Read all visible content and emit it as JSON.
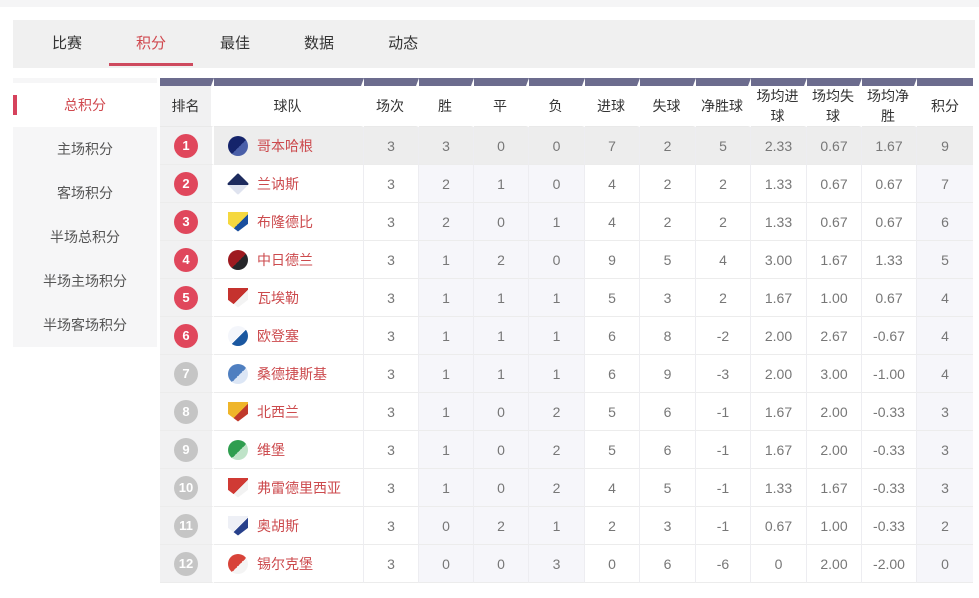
{
  "nav": {
    "tabs": [
      {
        "label": "比赛",
        "active": false
      },
      {
        "label": "积分",
        "active": true
      },
      {
        "label": "最佳",
        "active": false
      },
      {
        "label": "数据",
        "active": false
      },
      {
        "label": "动态",
        "active": false
      }
    ]
  },
  "sidebar": {
    "items": [
      {
        "label": "总积分",
        "active": true
      },
      {
        "label": "主场积分",
        "active": false
      },
      {
        "label": "客场积分",
        "active": false
      },
      {
        "label": "半场总积分",
        "active": false
      },
      {
        "label": "半场主场积分",
        "active": false
      },
      {
        "label": "半场客场积分",
        "active": false
      }
    ]
  },
  "colors": {
    "accent_red": "#e0475c",
    "text_red": "#cc4a4d",
    "header_purple": "#6c6c8e",
    "badge_gray": "#c5c5c5",
    "nav_bg": "#f0f0f0",
    "tint_col": "#f6f6fa"
  },
  "table": {
    "columns": [
      "排名",
      "球队",
      "场次",
      "胜",
      "平",
      "负",
      "进球",
      "失球",
      "净胜球",
      "场均进球",
      "场均失球",
      "场均净胜",
      "积分"
    ],
    "tinted_stat_indexes": [
      1,
      2,
      3,
      10
    ],
    "rows": [
      {
        "rank": "1",
        "team": "哥本哈根",
        "badge": "red",
        "highlighted": true,
        "logo": {
          "shape": "circle",
          "c1": "#15246b",
          "c2": "#4a5fa8"
        },
        "stats": [
          "3",
          "3",
          "0",
          "0",
          "7",
          "2",
          "5",
          "2.33",
          "0.67",
          "1.67",
          "9"
        ]
      },
      {
        "rank": "2",
        "team": "兰讷斯",
        "badge": "red",
        "highlighted": false,
        "logo": {
          "shape": "diamond",
          "c1": "#1d2b5e",
          "c2": "#dfe3ef"
        },
        "stats": [
          "3",
          "2",
          "1",
          "0",
          "4",
          "2",
          "2",
          "1.33",
          "0.67",
          "0.67",
          "7"
        ]
      },
      {
        "rank": "3",
        "team": "布隆德比",
        "badge": "red",
        "highlighted": false,
        "logo": {
          "shape": "shield",
          "c1": "#f5d83f",
          "c2": "#1a4f9e"
        },
        "stats": [
          "3",
          "2",
          "0",
          "1",
          "4",
          "2",
          "2",
          "1.33",
          "0.67",
          "0.67",
          "6"
        ]
      },
      {
        "rank": "4",
        "team": "中日德兰",
        "badge": "red",
        "highlighted": false,
        "logo": {
          "shape": "circle",
          "c1": "#9e1a20",
          "c2": "#26262a"
        },
        "stats": [
          "3",
          "1",
          "2",
          "0",
          "9",
          "5",
          "4",
          "3.00",
          "1.67",
          "1.33",
          "5"
        ]
      },
      {
        "rank": "5",
        "team": "瓦埃勒",
        "badge": "red",
        "highlighted": false,
        "logo": {
          "shape": "shield",
          "c1": "#c5322e",
          "c2": "#f3f3f3"
        },
        "stats": [
          "3",
          "1",
          "1",
          "1",
          "5",
          "3",
          "2",
          "1.67",
          "1.00",
          "0.67",
          "4"
        ]
      },
      {
        "rank": "6",
        "team": "欧登塞",
        "badge": "red",
        "highlighted": false,
        "logo": {
          "shape": "circle",
          "c1": "#f4f6fb",
          "c2": "#1a57a0"
        },
        "stats": [
          "3",
          "1",
          "1",
          "1",
          "6",
          "8",
          "-2",
          "2.00",
          "2.67",
          "-0.67",
          "4"
        ]
      },
      {
        "rank": "7",
        "team": "桑德捷斯基",
        "badge": "gray",
        "highlighted": false,
        "logo": {
          "shape": "circle",
          "c1": "#4f7fc0",
          "c2": "#dce6f5"
        },
        "stats": [
          "3",
          "1",
          "1",
          "1",
          "6",
          "9",
          "-3",
          "2.00",
          "3.00",
          "-1.00",
          "4"
        ]
      },
      {
        "rank": "8",
        "team": "北西兰",
        "badge": "gray",
        "highlighted": false,
        "logo": {
          "shape": "shield",
          "c1": "#efb52a",
          "c2": "#c0392b"
        },
        "stats": [
          "3",
          "1",
          "0",
          "2",
          "5",
          "6",
          "-1",
          "1.67",
          "2.00",
          "-0.33",
          "3"
        ]
      },
      {
        "rank": "9",
        "team": "维堡",
        "badge": "gray",
        "highlighted": false,
        "logo": {
          "shape": "circle",
          "c1": "#2f9e4f",
          "c2": "#bfe3c8"
        },
        "stats": [
          "3",
          "1",
          "0",
          "2",
          "5",
          "6",
          "-1",
          "1.67",
          "2.00",
          "-0.33",
          "3"
        ]
      },
      {
        "rank": "10",
        "team": "弗雷德里西亚",
        "badge": "gray",
        "highlighted": false,
        "logo": {
          "shape": "shield",
          "c1": "#d03a34",
          "c2": "#f2f2f2"
        },
        "stats": [
          "3",
          "1",
          "0",
          "2",
          "4",
          "5",
          "-1",
          "1.33",
          "1.67",
          "-0.33",
          "3"
        ]
      },
      {
        "rank": "11",
        "team": "奥胡斯",
        "badge": "gray",
        "highlighted": false,
        "logo": {
          "shape": "shield",
          "c1": "#eef0f6",
          "c2": "#27408b"
        },
        "stats": [
          "3",
          "0",
          "2",
          "1",
          "2",
          "3",
          "-1",
          "0.67",
          "1.00",
          "-0.33",
          "2"
        ]
      },
      {
        "rank": "12",
        "team": "锡尔克堡",
        "badge": "gray",
        "highlighted": false,
        "logo": {
          "shape": "circle",
          "c1": "#d84339",
          "c2": "#f4f4f4"
        },
        "stats": [
          "3",
          "0",
          "0",
          "3",
          "0",
          "6",
          "-6",
          "0",
          "2.00",
          "-2.00",
          "0"
        ]
      }
    ]
  }
}
